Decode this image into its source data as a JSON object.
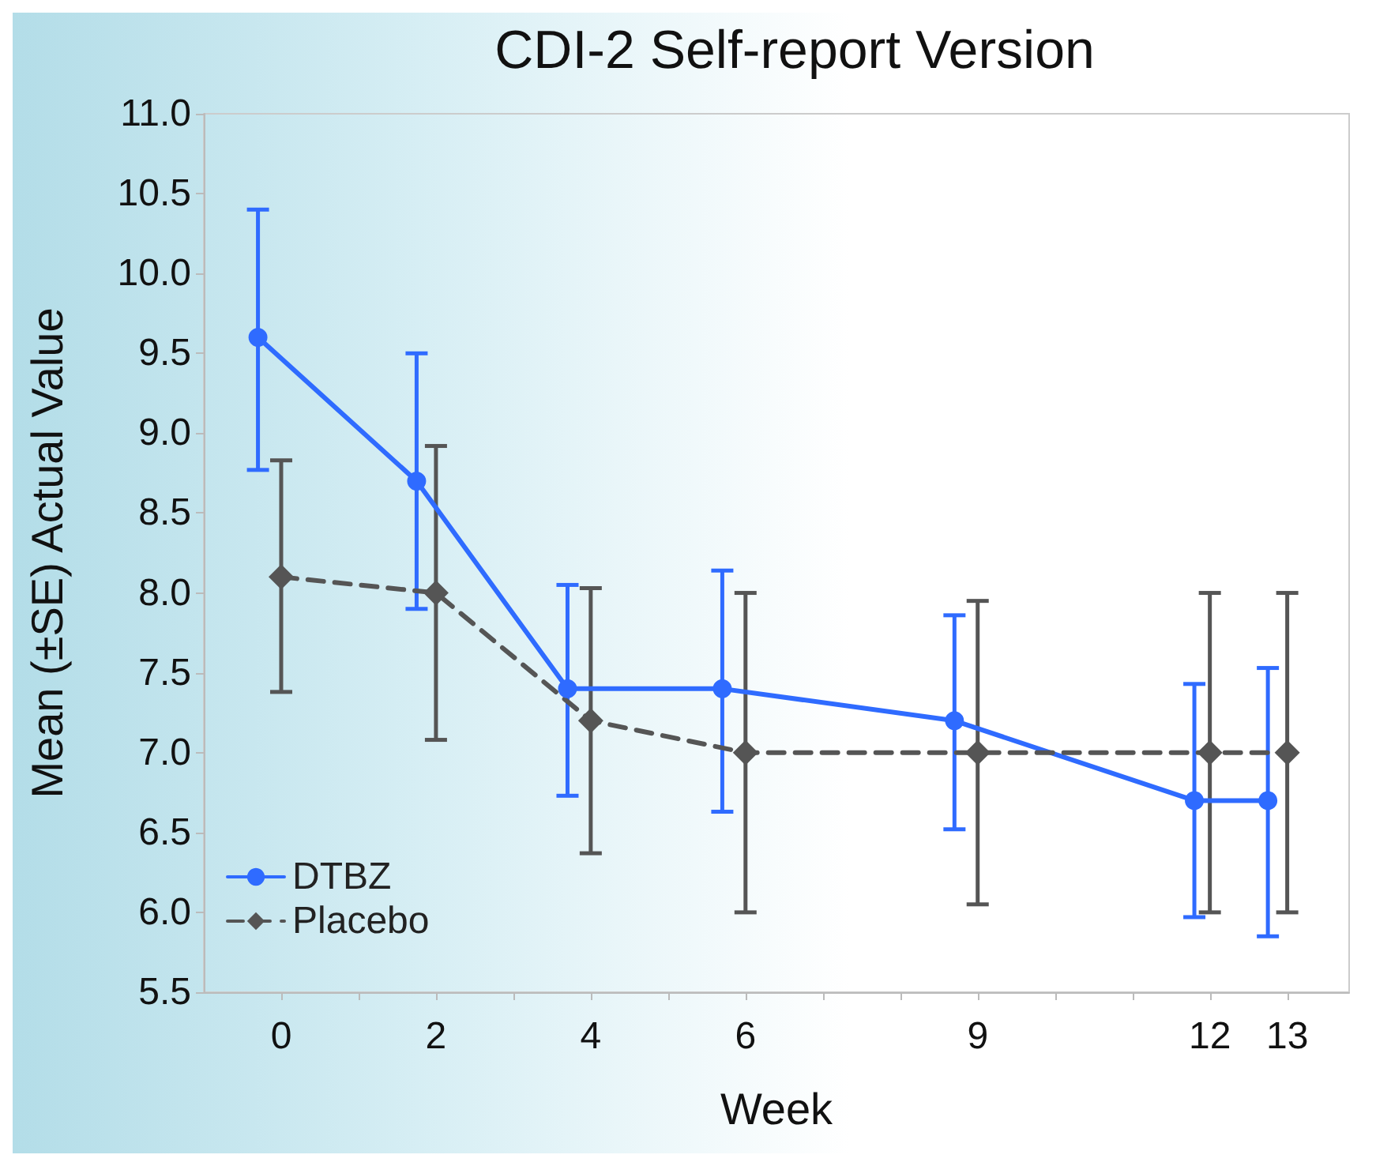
{
  "chart_data": {
    "type": "line",
    "title": "CDI-2 Self-report Version",
    "xlabel": "Week",
    "ylabel": "Mean (±SE) Actual Value",
    "xlim": [
      -1,
      13.8
    ],
    "xticks": [
      0,
      {
        "value": 1,
        "label": null
      },
      2,
      {
        "value": 3,
        "label": null
      },
      4,
      {
        "value": 5,
        "label": null
      },
      6,
      {
        "value": 7,
        "label": null
      },
      {
        "value": 8,
        "label": null
      },
      9,
      {
        "value": 10,
        "label": null
      },
      {
        "value": 11,
        "label": null
      },
      12,
      13
    ],
    "ylim": [
      5.5,
      11.0
    ],
    "yticks": [
      {
        "value": 5.5,
        "label": "5.5"
      },
      {
        "value": 6,
        "label": "6.0"
      },
      {
        "value": 6.5,
        "label": "6.5"
      },
      {
        "value": 7,
        "label": "7.0"
      },
      {
        "value": 7.5,
        "label": "7.5"
      },
      {
        "value": 8,
        "label": "8.0"
      },
      {
        "value": 8.5,
        "label": "8.5"
      },
      {
        "value": 9,
        "label": "9.0"
      },
      {
        "value": 9.5,
        "label": "9.5"
      },
      {
        "value": 10,
        "label": "10.0"
      },
      {
        "value": 10.5,
        "label": "10.5"
      },
      {
        "value": 11,
        "label": "11.0"
      }
    ],
    "grid": false,
    "legend": "bottom left",
    "series": [
      {
        "name": "DTBZ",
        "color": "#2f6bff",
        "marker": "circle",
        "line_style": "solid",
        "x": [
          -0.3,
          1.75,
          3.7,
          5.7,
          8.7,
          11.8,
          12.75
        ],
        "values": [
          9.6,
          8.7,
          7.4,
          7.4,
          7.2,
          6.7,
          6.7
        ],
        "errors": [
          [
            8.77,
            10.4
          ],
          [
            7.9,
            9.5
          ],
          [
            6.73,
            8.05
          ],
          [
            6.63,
            8.14
          ],
          [
            6.52,
            7.86
          ],
          [
            5.97,
            7.43
          ],
          [
            5.85,
            7.53
          ]
        ]
      },
      {
        "name": "Placebo",
        "color": "#555555",
        "marker": "diamond",
        "line_style": "dashed",
        "x": [
          0,
          2,
          4,
          6,
          9,
          12,
          13
        ],
        "values": [
          8.1,
          8.0,
          7.2,
          7.0,
          7.0,
          7.0,
          7.0
        ],
        "errors": [
          [
            7.38,
            8.83
          ],
          [
            7.08,
            8.92
          ],
          [
            6.37,
            8.03
          ],
          [
            6.0,
            8.0
          ],
          [
            6.05,
            7.95
          ],
          [
            6.0,
            8.0
          ],
          [
            6.0,
            8.0
          ]
        ]
      }
    ]
  }
}
